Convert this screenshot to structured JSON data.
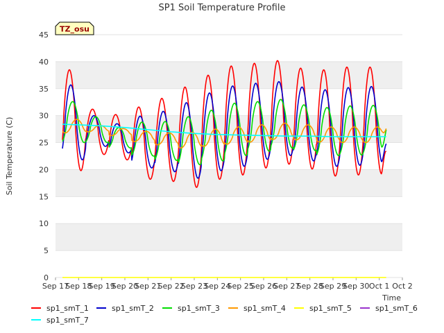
{
  "chart_data": {
    "type": "line",
    "title": "SP1 Soil Temperature Profile",
    "xlabel": "Time",
    "ylabel": "Soil Temperature (C)",
    "ylim": [
      0,
      45
    ],
    "yticks": [
      0,
      5,
      10,
      15,
      20,
      25,
      30,
      35,
      40,
      45
    ],
    "xlim": [
      "Sep 17",
      "Oct 2"
    ],
    "xticks": [
      "Sep 17",
      "Sep 18",
      "Sep 19",
      "Sep 20",
      "Sep 21",
      "Sep 22",
      "Sep 23",
      "Sep 24",
      "Sep 25",
      "Sep 26",
      "Sep 27",
      "Sep 28",
      "Sep 29",
      "Sep 30",
      "Oct 1",
      "Oct 2"
    ],
    "data_range_days": [
      0.3,
      14.3
    ],
    "badge": "TZ_osu",
    "grid": "horizontal bands",
    "legend_position": "bottom",
    "series": [
      {
        "name": "sp1_smT_1",
        "color": "#ff0000",
        "daily_max": [
          38.5,
          31.2,
          30.2,
          31.6,
          33.2,
          35.3,
          37.5,
          39.2,
          39.7,
          40.2,
          38.8,
          38.5,
          39.0,
          39.0
        ],
        "daily_min": [
          19.8,
          22.8,
          21.8,
          18.2,
          17.8,
          16.7,
          18.2,
          19.0,
          20.3,
          21.0,
          20.1,
          18.8,
          19.0,
          19.2
        ],
        "end_value": 23.3
      },
      {
        "name": "sp1_smT_2",
        "color": "#0000cc",
        "daily_max": [
          35.7,
          30.0,
          28.5,
          29.9,
          30.8,
          32.4,
          34.2,
          35.5,
          36.0,
          36.3,
          35.3,
          34.8,
          35.2,
          35.4
        ],
        "daily_min": [
          21.8,
          24.3,
          23.1,
          20.3,
          19.6,
          18.4,
          19.8,
          20.6,
          21.9,
          22.6,
          21.6,
          20.6,
          20.8,
          21.0
        ],
        "end_value": 24.8
      },
      {
        "name": "sp1_smT_3",
        "color": "#00dd00",
        "daily_max": [
          32.6,
          29.8,
          27.8,
          28.8,
          28.9,
          29.8,
          31.0,
          32.3,
          32.6,
          33.0,
          32.0,
          31.5,
          31.8,
          31.9
        ],
        "daily_min": [
          25.0,
          25.0,
          24.0,
          22.5,
          21.7,
          20.9,
          21.6,
          22.6,
          23.4,
          24.0,
          23.5,
          22.6,
          22.7,
          22.8
        ],
        "end_value": 27.4
      },
      {
        "name": "sp1_smT_4",
        "color": "#ff9900",
        "daily_max": [
          29.3,
          28.2,
          27.6,
          27.1,
          26.8,
          26.9,
          27.5,
          27.9,
          28.3,
          28.6,
          28.3,
          27.9,
          27.9,
          27.9
        ],
        "daily_min": [
          26.8,
          27.0,
          26.3,
          25.2,
          24.6,
          24.0,
          24.3,
          24.7,
          25.1,
          25.6,
          25.5,
          25.1,
          25.0,
          25.0
        ],
        "end_value": 27.6
      },
      {
        "name": "sp1_smT_5",
        "color": "#ffff00",
        "points": [
          [
            0.3,
            0.0
          ],
          [
            14.3,
            0.0
          ]
        ]
      },
      {
        "name": "sp1_smT_6",
        "color": "#9933cc",
        "points": []
      },
      {
        "name": "sp1_smT_7",
        "color": "#00ffff",
        "points": [
          [
            0.3,
            28.4
          ],
          [
            1.0,
            28.3
          ],
          [
            2.0,
            28.1
          ],
          [
            3.0,
            27.8
          ],
          [
            4.0,
            27.4
          ],
          [
            5.0,
            27.0
          ],
          [
            6.0,
            26.7
          ],
          [
            7.0,
            26.5
          ],
          [
            8.0,
            26.4
          ],
          [
            9.0,
            26.3
          ],
          [
            10.0,
            26.2
          ],
          [
            11.0,
            26.2
          ],
          [
            12.0,
            26.1
          ],
          [
            13.0,
            26.1
          ],
          [
            14.3,
            26.1
          ]
        ]
      }
    ]
  }
}
